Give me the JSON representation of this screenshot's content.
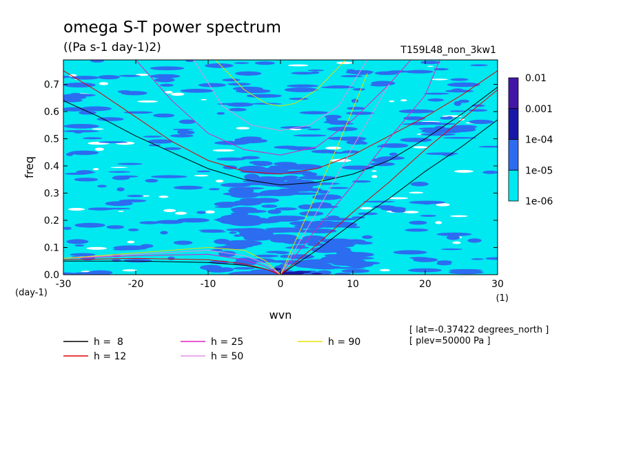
{
  "header": {
    "title": "omega S-T power spectrum",
    "units": "((Pa s-1 day-1)2)",
    "run_name": "T159L48_non_3kw1"
  },
  "axes": {
    "xlabel": "wvn",
    "ylabel": "freq",
    "x_unit": "(1)",
    "y_unit": "(day-1)",
    "x_ticks": [
      "-30",
      "-20",
      "-10",
      "0",
      "10",
      "20",
      "30"
    ],
    "y_ticks": [
      "0.0",
      "0.1",
      "0.2",
      "0.3",
      "0.4",
      "0.5",
      "0.6",
      "0.7"
    ]
  },
  "colorbar": {
    "labels": [
      "0.01",
      "0.001",
      "1e-04",
      "1e-05",
      "1e-06"
    ],
    "colors": [
      "#4416a8",
      "#1818a8",
      "#2c6cf0",
      "#00e8f0"
    ]
  },
  "legend": {
    "items": [
      {
        "label": "h =  8",
        "color": "#000000"
      },
      {
        "label": "h = 12",
        "color": "#e00000"
      },
      {
        "label": "h = 25",
        "color": "#e020c0"
      },
      {
        "label": "h = 50",
        "color": "#e090e0"
      },
      {
        "label": "h = 90",
        "color": "#e8e000"
      }
    ]
  },
  "info": {
    "lat": "[ lat=-0.37422 degrees_north ]",
    "plev": "[ plev=50000 Pa ]"
  },
  "chart_data": {
    "type": "heatmap",
    "title": "omega S-T power spectrum",
    "subtitle": "((Pa s-1 day-1)2)",
    "xlabel": "wvn",
    "ylabel": "freq",
    "xlim": [
      -30,
      30
    ],
    "ylim": [
      0,
      0.79
    ],
    "contour_levels": [
      1e-06,
      1e-05,
      0.0001,
      0.001,
      0.01
    ],
    "series": [
      {
        "name": "h =  8",
        "color": "#000000",
        "curves": [
          {
            "x": [
              -30,
              -25,
              -20,
              -15,
              -10,
              -5,
              0,
              5,
              10,
              15,
              20,
              25,
              30
            ],
            "y": [
              0.64,
              0.58,
              0.51,
              0.45,
              0.39,
              0.35,
              0.33,
              0.34,
              0.37,
              0.42,
              0.5,
              0.59,
              0.69
            ]
          },
          {
            "x": [
              -30,
              -20,
              -10,
              -5,
              -2,
              0
            ],
            "y": [
              0.05,
              0.05,
              0.045,
              0.035,
              0.02,
              0
            ]
          },
          {
            "x": [
              0,
              5,
              10,
              15,
              20,
              25,
              30
            ],
            "y": [
              0,
              0.09,
              0.19,
              0.28,
              0.38,
              0.47,
              0.57
            ]
          }
        ]
      },
      {
        "name": "h = 12",
        "color": "#e00000",
        "curves": [
          {
            "x": [
              -30,
              -25,
              -20,
              -15,
              -10,
              -5,
              0,
              5,
              10,
              15,
              20,
              25,
              30
            ],
            "y": [
              0.75,
              0.67,
              0.58,
              0.49,
              0.42,
              0.38,
              0.37,
              0.39,
              0.44,
              0.51,
              0.58,
              0.66,
              0.75
            ]
          },
          {
            "x": [
              -30,
              -20,
              -10,
              -5,
              -2,
              0
            ],
            "y": [
              0.055,
              0.06,
              0.055,
              0.04,
              0.02,
              0
            ]
          },
          {
            "x": [
              0,
              5,
              10,
              15,
              20,
              25,
              30
            ],
            "y": [
              0,
              0.11,
              0.23,
              0.34,
              0.46,
              0.57,
              0.68
            ]
          }
        ]
      },
      {
        "name": "h = 25",
        "color": "#e020c0",
        "curves": [
          {
            "x": [
              -20,
              -15,
              -10,
              -5,
              0,
              5,
              10,
              15,
              18
            ],
            "y": [
              0.79,
              0.64,
              0.52,
              0.46,
              0.44,
              0.47,
              0.57,
              0.7,
              0.79
            ]
          },
          {
            "x": [
              -30,
              -20,
              -10,
              -5,
              -2,
              0
            ],
            "y": [
              0.06,
              0.07,
              0.075,
              0.055,
              0.03,
              0
            ]
          },
          {
            "x": [
              0,
              5,
              10,
              15,
              20,
              22
            ],
            "y": [
              0,
              0.17,
              0.33,
              0.5,
              0.66,
              0.79
            ]
          }
        ]
      },
      {
        "name": "h = 50",
        "color": "#e090e0",
        "curves": [
          {
            "x": [
              -12,
              -8,
              -4,
              0,
              4,
              8,
              12
            ],
            "y": [
              0.79,
              0.62,
              0.55,
              0.53,
              0.55,
              0.62,
              0.79
            ]
          },
          {
            "x": [
              -30,
              -20,
              -10,
              -5,
              -2,
              0
            ],
            "y": [
              0.06,
              0.075,
              0.09,
              0.07,
              0.04,
              0
            ]
          },
          {
            "x": [
              0,
              5,
              10,
              15
            ],
            "y": [
              0,
              0.23,
              0.47,
              0.7
            ]
          }
        ]
      },
      {
        "name": "h = 90",
        "color": "#e8e000",
        "curves": [
          {
            "x": [
              -9,
              -5,
              -2,
              0,
              2,
              5,
              9
            ],
            "y": [
              0.79,
              0.68,
              0.63,
              0.62,
              0.63,
              0.68,
              0.79
            ]
          },
          {
            "x": [
              -30,
              -20,
              -10,
              -5,
              -2,
              0
            ],
            "y": [
              0.06,
              0.08,
              0.1,
              0.09,
              0.05,
              0
            ]
          },
          {
            "x": [
              0,
              4,
              8,
              12
            ],
            "y": [
              0,
              0.24,
              0.48,
              0.74
            ]
          }
        ]
      }
    ]
  }
}
